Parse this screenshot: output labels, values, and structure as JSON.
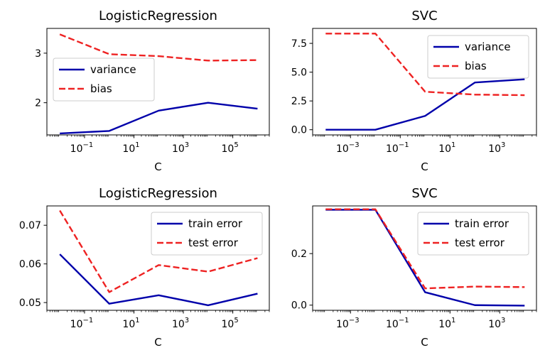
{
  "figure": {
    "background": "#ffffff"
  },
  "chart_data": [
    {
      "type": "line",
      "title": "LogisticRegression",
      "xlabel": "C",
      "ylabel": "",
      "xscale": "log",
      "xlim": [
        0.003,
        3000000
      ],
      "ylim": [
        1.35,
        3.5
      ],
      "xticks": [
        {
          "value": 0.1,
          "base": "10",
          "exp": "−1"
        },
        {
          "value": 10,
          "base": "10",
          "exp": "1"
        },
        {
          "value": 1000,
          "base": "10",
          "exp": "3"
        },
        {
          "value": 100000,
          "base": "10",
          "exp": "5"
        }
      ],
      "yticks": [
        {
          "value": 2,
          "label": "2"
        },
        {
          "value": 3,
          "label": "3"
        }
      ],
      "legend": "center-left",
      "grid": false,
      "x": [
        0.01,
        1,
        100,
        10000,
        1000000
      ],
      "series": [
        {
          "name": "variance",
          "style": "solid",
          "color": "#0000aa",
          "values": [
            1.38,
            1.43,
            1.84,
            2.0,
            1.88
          ]
        },
        {
          "name": "bias",
          "style": "dashed",
          "color": "#ee2222",
          "values": [
            3.38,
            2.98,
            2.94,
            2.85,
            2.86
          ]
        }
      ]
    },
    {
      "type": "line",
      "title": "SVC",
      "xlabel": "C",
      "ylabel": "",
      "xscale": "log",
      "xlim": [
        3e-05,
        30000
      ],
      "ylim": [
        -0.45,
        8.8
      ],
      "xticks": [
        {
          "value": 0.001,
          "base": "10",
          "exp": "−3"
        },
        {
          "value": 0.1,
          "base": "10",
          "exp": "−1"
        },
        {
          "value": 10,
          "base": "10",
          "exp": "1"
        },
        {
          "value": 1000,
          "base": "10",
          "exp": "3"
        }
      ],
      "yticks": [
        {
          "value": 0,
          "label": "0.0"
        },
        {
          "value": 2.5,
          "label": "2.5"
        },
        {
          "value": 5,
          "label": "5.0"
        },
        {
          "value": 7.5,
          "label": "7.5"
        }
      ],
      "legend": "top-right",
      "grid": false,
      "x": [
        0.0001,
        0.01,
        1,
        100,
        10000
      ],
      "series": [
        {
          "name": "variance",
          "style": "solid",
          "color": "#0000aa",
          "values": [
            0.0,
            0.0,
            1.2,
            4.1,
            4.38
          ]
        },
        {
          "name": "bias",
          "style": "dashed",
          "color": "#ee2222",
          "values": [
            8.35,
            8.35,
            3.3,
            3.05,
            3.0
          ]
        }
      ]
    },
    {
      "type": "line",
      "title": "LogisticRegression",
      "xlabel": "C",
      "ylabel": "",
      "xscale": "log",
      "xlim": [
        0.003,
        3000000
      ],
      "ylim": [
        0.048,
        0.075
      ],
      "xticks": [
        {
          "value": 0.1,
          "base": "10",
          "exp": "−1"
        },
        {
          "value": 10,
          "base": "10",
          "exp": "1"
        },
        {
          "value": 1000,
          "base": "10",
          "exp": "3"
        },
        {
          "value": 100000,
          "base": "10",
          "exp": "5"
        }
      ],
      "yticks": [
        {
          "value": 0.05,
          "label": "0.05"
        },
        {
          "value": 0.06,
          "label": "0.06"
        },
        {
          "value": 0.07,
          "label": "0.07"
        }
      ],
      "legend": "top-right",
      "grid": false,
      "x": [
        0.01,
        1,
        100,
        10000,
        1000000
      ],
      "series": [
        {
          "name": "train error",
          "style": "solid",
          "color": "#0000aa",
          "values": [
            0.0625,
            0.0497,
            0.0519,
            0.0493,
            0.0523
          ]
        },
        {
          "name": "test error",
          "style": "dashed",
          "color": "#ee2222",
          "values": [
            0.0738,
            0.0527,
            0.0597,
            0.058,
            0.0615
          ]
        }
      ]
    },
    {
      "type": "line",
      "title": "SVC",
      "xlabel": "C",
      "ylabel": "",
      "xscale": "log",
      "xlim": [
        3e-05,
        30000
      ],
      "ylim": [
        -0.02,
        0.385
      ],
      "xticks": [
        {
          "value": 0.001,
          "base": "10",
          "exp": "−3"
        },
        {
          "value": 0.1,
          "base": "10",
          "exp": "−1"
        },
        {
          "value": 10,
          "base": "10",
          "exp": "1"
        },
        {
          "value": 1000,
          "base": "10",
          "exp": "3"
        }
      ],
      "yticks": [
        {
          "value": 0,
          "label": "0.0"
        },
        {
          "value": 0.2,
          "label": "0.2"
        }
      ],
      "legend": "top-right",
      "grid": false,
      "x": [
        0.0001,
        0.01,
        1,
        100,
        10000
      ],
      "series": [
        {
          "name": "train error",
          "style": "solid",
          "color": "#0000aa",
          "values": [
            0.37,
            0.37,
            0.05,
            0.0,
            -0.002
          ]
        },
        {
          "name": "test error",
          "style": "dashed",
          "color": "#ee2222",
          "values": [
            0.372,
            0.372,
            0.065,
            0.072,
            0.07
          ]
        }
      ]
    }
  ]
}
